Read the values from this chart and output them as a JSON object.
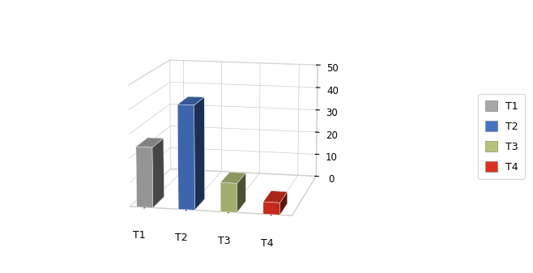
{
  "categories": [
    "T1",
    "T2",
    "T3",
    "T4"
  ],
  "values": [
    25,
    43,
    12,
    5
  ],
  "colors_front": [
    "#a8a8a8",
    "#4472c4",
    "#b5c47a",
    "#e03020"
  ],
  "colors_top": [
    "#c8c8c8",
    "#6090e0",
    "#ccd890",
    "#f05040"
  ],
  "colors_side": [
    "#888888",
    "#2850a0",
    "#8a9850",
    "#b01010"
  ],
  "ylim": [
    0,
    50
  ],
  "yticks": [
    0,
    10,
    20,
    30,
    40,
    50
  ],
  "legend_labels": [
    "T1",
    "T2",
    "T3",
    "T4"
  ],
  "legend_colors": [
    "#a8a8a8",
    "#4472c4",
    "#b5c47a",
    "#e03020"
  ],
  "background_color": "#ffffff",
  "bar_width": 0.7,
  "bar_depth": 0.4,
  "elev": 12,
  "azim": -78
}
